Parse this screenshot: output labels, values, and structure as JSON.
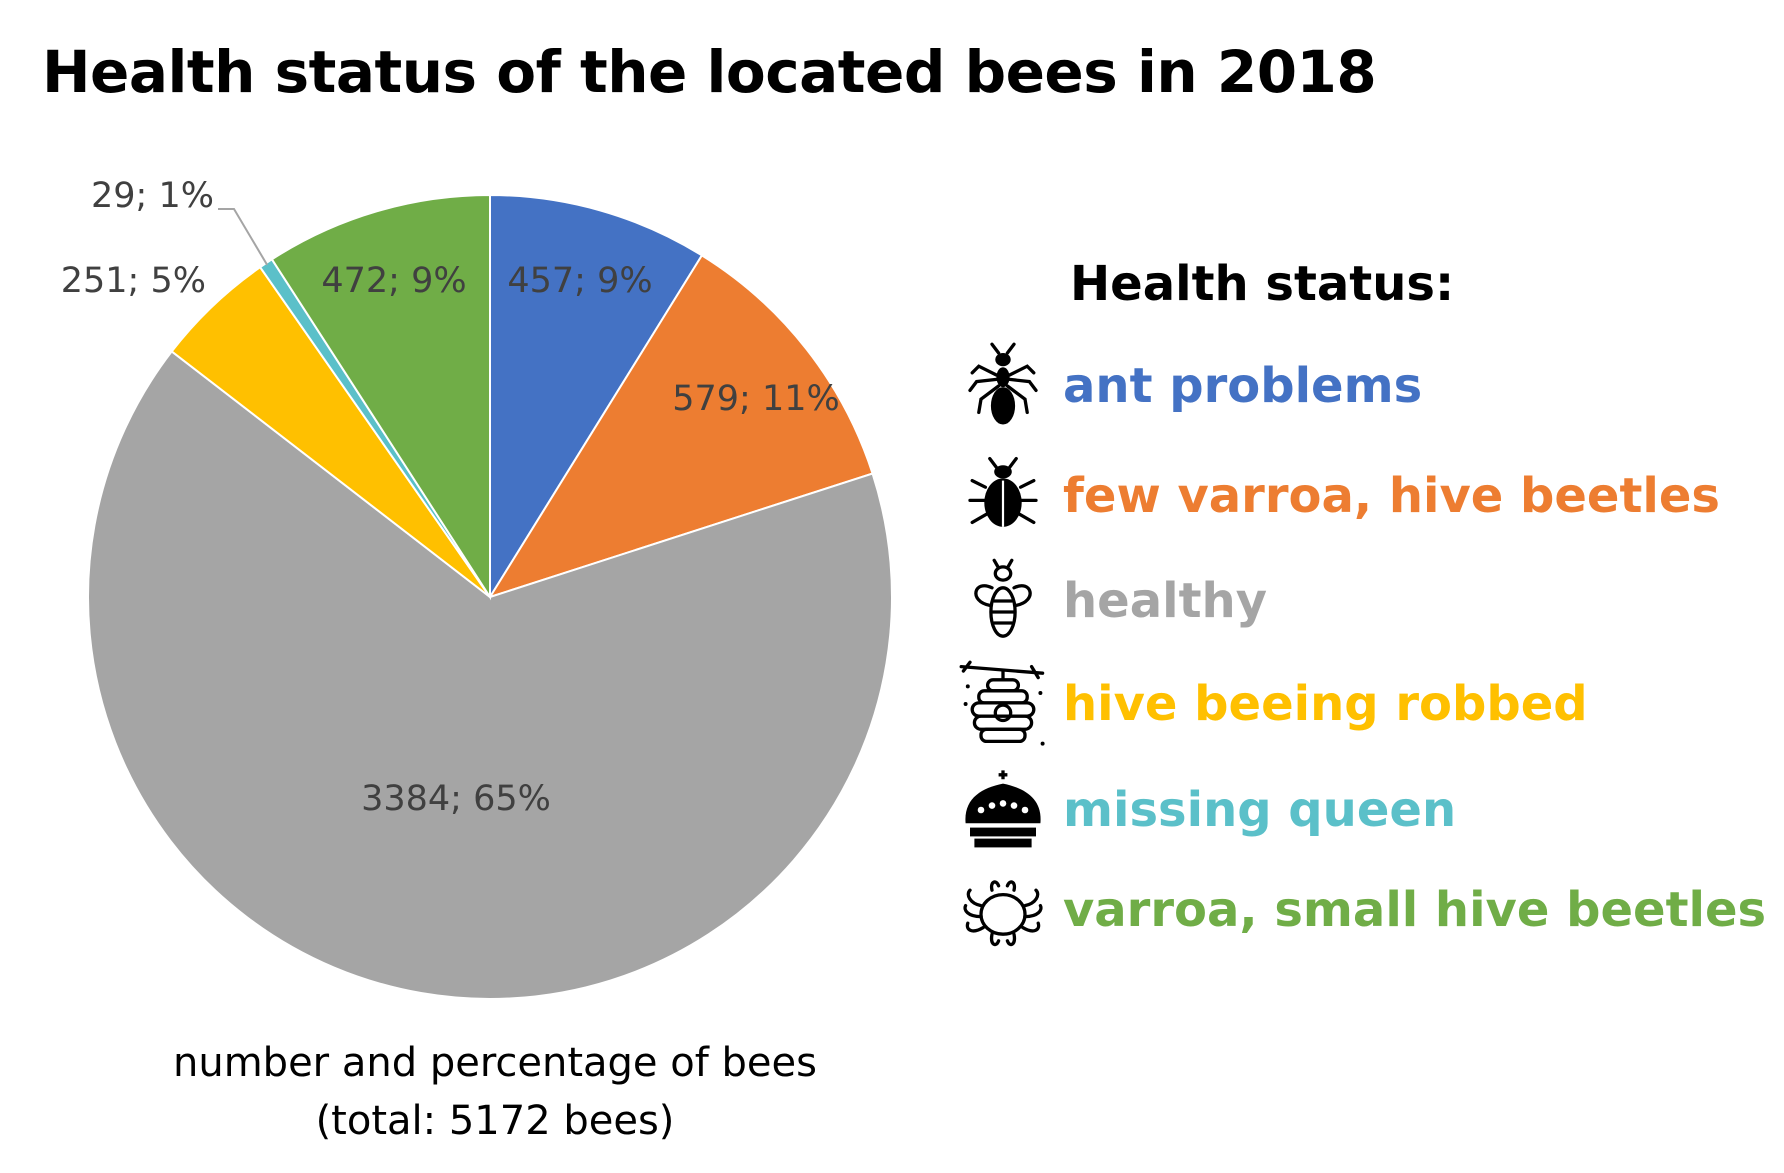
{
  "title": "Health status of the located bees in 2018",
  "caption": {
    "line1": "number and percentage of bees",
    "line2": "(total: 5172 bees)"
  },
  "legend": {
    "title": "Health status:",
    "items": [
      {
        "label": "ant problems",
        "color": "#4472C4",
        "icon": "ant-icon"
      },
      {
        "label": "few varroa, hive beetles",
        "color": "#ED7D31",
        "icon": "beetle-icon"
      },
      {
        "label": "healthy",
        "color": "#A5A5A5",
        "icon": "bee-icon"
      },
      {
        "label": "hive beeing robbed",
        "color": "#FFC000",
        "icon": "beehive-icon"
      },
      {
        "label": "missing queen",
        "color": "#5BC0C9",
        "icon": "crown-icon"
      },
      {
        "label": "varroa, small hive beetles",
        "color": "#70AD47",
        "icon": "bug-outline-icon"
      }
    ]
  },
  "chart_data": {
    "type": "pie",
    "title": "Health status of the located bees in 2018",
    "categories": [
      "ant problems",
      "few varroa, hive beetles",
      "healthy",
      "hive beeing robbed",
      "missing queen",
      "varroa, small hive beetles"
    ],
    "values": [
      457,
      579,
      3384,
      251,
      29,
      472
    ],
    "percent_labels": [
      "457; 9%",
      "579; 11%",
      "3384; 65%",
      "251; 5%",
      "29; 1%",
      "472; 9%"
    ],
    "colors": [
      "#4472C4",
      "#ED7D31",
      "#A5A5A5",
      "#FFC000",
      "#5BC0C9",
      "#70AD47"
    ],
    "total_label": "(total: 5172 bees)",
    "legend_position": "right"
  }
}
